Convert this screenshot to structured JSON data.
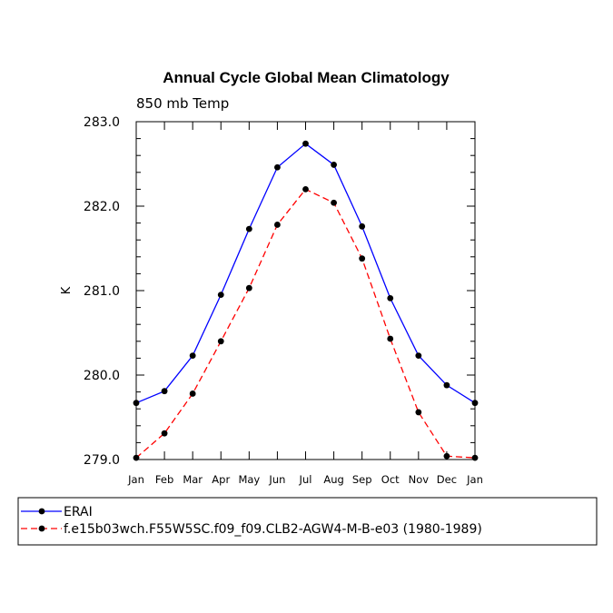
{
  "chart_data": {
    "type": "line",
    "title": "Annual Cycle Global Mean Climatology",
    "subtitle": "850 mb Temp",
    "xlabel": "",
    "ylabel": "K",
    "ylim": [
      279.0,
      283.0
    ],
    "yticks": [
      "279.0",
      "280.0",
      "281.0",
      "282.0",
      "283.0"
    ],
    "categories": [
      "Jan",
      "Feb",
      "Mar",
      "Apr",
      "May",
      "Jun",
      "Jul",
      "Aug",
      "Sep",
      "Oct",
      "Nov",
      "Dec",
      "Jan"
    ],
    "legend_position": "bottom",
    "series": [
      {
        "name": "ERAI",
        "color": "#0000ff",
        "dash": "solid",
        "values": [
          279.67,
          279.81,
          280.23,
          280.95,
          281.73,
          282.46,
          282.74,
          282.49,
          281.76,
          280.91,
          280.23,
          279.88,
          279.67
        ]
      },
      {
        "name": "f.e15b03wch.F55W5SC.f09_f09.CLB2-AGW4-M-B-e03 (1980-1989)",
        "color": "#ff0000",
        "dash": "dashed",
        "values": [
          279.02,
          279.31,
          279.78,
          280.4,
          281.03,
          281.78,
          282.2,
          282.04,
          281.38,
          280.43,
          279.56,
          279.04,
          279.02
        ]
      }
    ]
  }
}
